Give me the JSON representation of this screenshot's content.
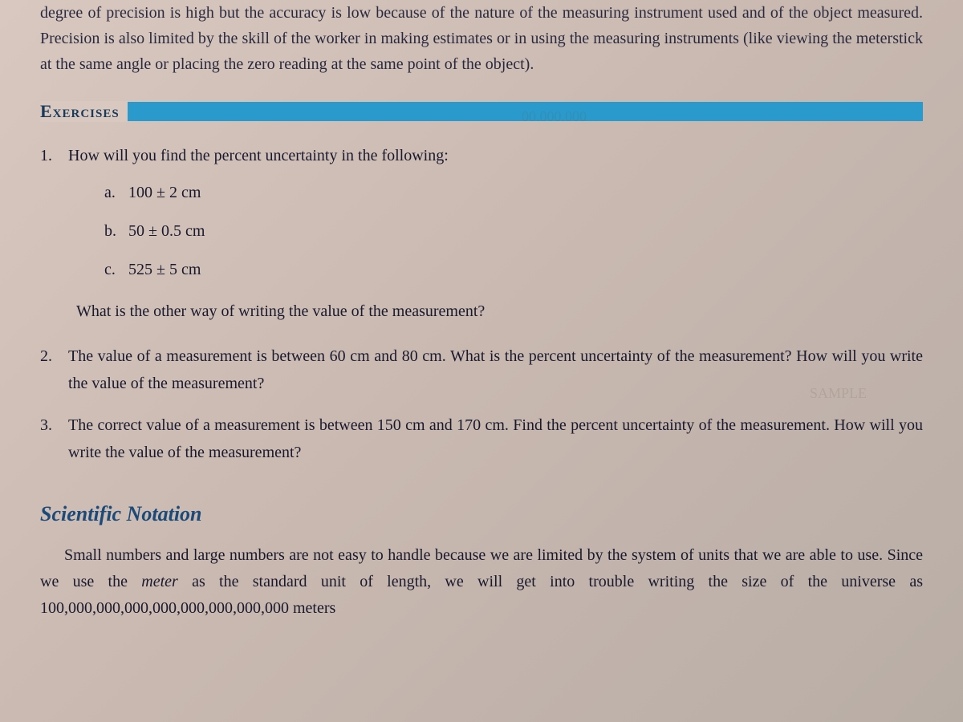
{
  "intro": {
    "text": "degree of precision is high but the accuracy is low because of the nature of the measuring instrument used and of the object measured. Precision is also limited by the skill of the worker in making estimates or in using the measuring instruments (like viewing the meterstick at the same angle or placing the zero reading at the same point of the object)."
  },
  "exercises": {
    "label": "Exercises",
    "bar_color": "#2a9acc",
    "questions": [
      {
        "number": "1.",
        "text": "How will you find the percent uncertainty in the following:",
        "sub_items": [
          {
            "letter": "a.",
            "value": "100 ± 2 cm"
          },
          {
            "letter": "b.",
            "value": "50 ± 0.5 cm"
          },
          {
            "letter": "c.",
            "value": "525 ± 5 cm"
          }
        ],
        "follow_up": "What is the other way of writing the value of the measurement?"
      },
      {
        "number": "2.",
        "text": "The value of a measurement is between 60 cm and 80 cm. What is the percent uncertainty of the measurement? How will you write the value of the measurement?"
      },
      {
        "number": "3.",
        "text": "The correct value of a measurement is between 150 cm and 170 cm. Find the percent uncertainty of the measurement. How will you write the value of the measurement?"
      }
    ]
  },
  "section": {
    "heading": "Scientific Notation",
    "body_pre": "Small numbers and large numbers are not easy to handle because we are limited by the system of units that we are able to use. Since we use the ",
    "body_italic": "meter",
    "body_post": " as the standard unit of length, we will get into trouble writing the size of the universe as 100,000,000,000,000,000,000,000,000 meters"
  },
  "styling": {
    "page_bg_start": "#d8c8c0",
    "page_bg_end": "#b8ada5",
    "text_color": "#1a1a2e",
    "heading_color": "#1a4a7a",
    "exercises_label_color": "#1a3a5a",
    "body_fontsize": 20,
    "heading_fontsize": 26,
    "exercises_fontsize": 22
  },
  "ghost": {
    "g1": "00.000.000",
    "g2": "SAMPLE"
  }
}
